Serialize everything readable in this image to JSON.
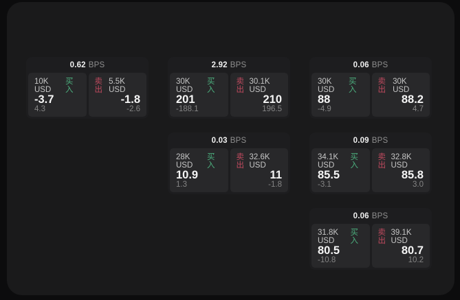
{
  "labels": {
    "buy": "买入",
    "sell": "卖出",
    "unit": "BPS"
  },
  "colors": {
    "backdrop": "#0c0c0d",
    "surface": "#1a1a1b",
    "card": "#1d1d1f",
    "panel": "#28282a",
    "buy_green": "#4caf7e",
    "sell_red": "#c04a5f",
    "value_white": "#f5f5f5",
    "muted_gray": "#858585"
  },
  "cards": [
    {
      "bps": "0.62",
      "buy": {
        "amount": "10K USD",
        "value": "-3.7",
        "sub": "4.3"
      },
      "sell": {
        "amount": "5.5K USD",
        "value": "-1.8",
        "sub": "-2.6"
      }
    },
    {
      "bps": "2.92",
      "buy": {
        "amount": "30K USD",
        "value": "201",
        "sub": "-188.1"
      },
      "sell": {
        "amount": "30.1K USD",
        "value": "210",
        "sub": "196.5"
      }
    },
    {
      "bps": "0.06",
      "buy": {
        "amount": "30K USD",
        "value": "88",
        "sub": "-4.9"
      },
      "sell": {
        "amount": "30K USD",
        "value": "88.2",
        "sub": "4.7"
      }
    },
    {
      "bps": "0.03",
      "buy": {
        "amount": "28K USD",
        "value": "10.9",
        "sub": "1.3"
      },
      "sell": {
        "amount": "32.6K USD",
        "value": "11",
        "sub": "-1.8"
      }
    },
    {
      "bps": "0.09",
      "buy": {
        "amount": "34.1K USD",
        "value": "85.5",
        "sub": "-3.1"
      },
      "sell": {
        "amount": "32.8K USD",
        "value": "85.8",
        "sub": "3.0"
      }
    },
    {
      "bps": "0.06",
      "buy": {
        "amount": "31.8K USD",
        "value": "80.5",
        "sub": "-10.8"
      },
      "sell": {
        "amount": "39.1K USD",
        "value": "80.7",
        "sub": "10.2"
      }
    }
  ]
}
